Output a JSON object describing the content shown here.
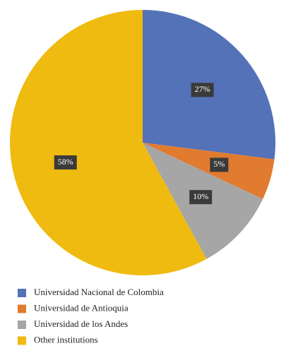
{
  "chart_data": {
    "type": "pie",
    "categories": [
      "Universidad Nacional de Colombia",
      "Universidad de Antioquia",
      "Universidad de los Andes",
      "Other institutions"
    ],
    "values": [
      27,
      5,
      10,
      58
    ],
    "value_labels": [
      "27%",
      "5%",
      "10%",
      "58%"
    ],
    "colors": [
      "#5472b8",
      "#e07b2f",
      "#a6a6a6",
      "#efbb10"
    ],
    "legend": "bottom"
  }
}
